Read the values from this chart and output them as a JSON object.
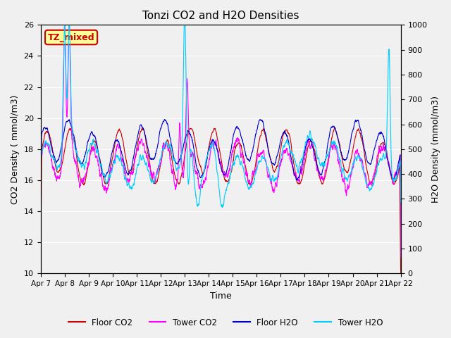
{
  "title": "Tonzi CO2 and H2O Densities",
  "xlabel": "Time",
  "ylabel_left": "CO2 Density ( mmol/m3)",
  "ylabel_right": "H2O Density (mmol/m3)",
  "ylim_left": [
    10,
    26
  ],
  "ylim_right": [
    0,
    1000
  ],
  "yticks_left": [
    10,
    12,
    14,
    16,
    18,
    20,
    22,
    24,
    26
  ],
  "yticks_right": [
    0,
    100,
    200,
    300,
    400,
    500,
    600,
    700,
    800,
    900,
    1000
  ],
  "x_tick_labels": [
    "Apr 7",
    "Apr 8",
    "Apr 9",
    "Apr 10",
    "Apr 11",
    "Apr 12",
    "Apr 13",
    "Apr 14",
    "Apr 15",
    "Apr 16",
    "Apr 17",
    "Apr 18",
    "Apr 19",
    "Apr 20",
    "Apr 21",
    "Apr 22"
  ],
  "annotation_text": "TZ_mixed",
  "annotation_color": "#cc0000",
  "annotation_bg": "#ffff99",
  "annotation_border": "#cc0000",
  "colors": {
    "floor_co2": "#cc0000",
    "tower_co2": "#ff00ff",
    "floor_h2o": "#0000cc",
    "tower_h2o": "#00ccff"
  },
  "legend_labels": [
    "Floor CO2",
    "Tower CO2",
    "Floor H2O",
    "Tower H2O"
  ],
  "background_color": "#e8e8e8",
  "plot_bg": "#f5f5f5"
}
